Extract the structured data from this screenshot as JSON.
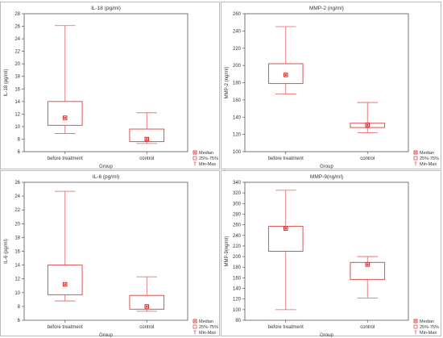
{
  "legend": {
    "median_label": "Median",
    "iqr_label": "25%-75%",
    "range_label": "Min-Max"
  },
  "colors": {
    "box_stroke": "#d9534f",
    "whisker_stroke": "#e06060",
    "median_fill": "#cc2222",
    "axis": "#555555",
    "text": "#333333"
  },
  "chart_data": [
    {
      "type": "box",
      "title": "IL-18 (pg/ml)",
      "xlabel": "Group",
      "ylabel": "IL-18 (pg/ml)",
      "categories": [
        "before treatment",
        "control"
      ],
      "ylim": [
        6,
        28
      ],
      "yticks": [
        6,
        8,
        10,
        12,
        14,
        16,
        18,
        20,
        22,
        24,
        26,
        28
      ],
      "boxes": [
        {
          "min": 8.9,
          "q1": 10.2,
          "median": 11.4,
          "q3": 14.0,
          "max": 26.1
        },
        {
          "min": 7.3,
          "q1": 7.6,
          "median": 8.0,
          "q3": 9.6,
          "max": 12.2
        }
      ]
    },
    {
      "type": "box",
      "title": "MMP-2  (ng/ml)",
      "xlabel": "Group",
      "ylabel": "MMP-2  (ng/ml)",
      "categories": [
        "before treatment",
        "control"
      ],
      "ylim": [
        100,
        260
      ],
      "yticks": [
        100,
        120,
        140,
        160,
        180,
        200,
        220,
        240,
        260
      ],
      "boxes": [
        {
          "min": 167,
          "q1": 179,
          "median": 189,
          "q3": 202,
          "max": 245
        },
        {
          "min": 122,
          "q1": 128,
          "median": 131,
          "q3": 133,
          "max": 157
        }
      ]
    },
    {
      "type": "box",
      "title": "IL-6 (pg/ml)",
      "xlabel": "Group",
      "ylabel": "IL-6 (pg/ml)",
      "categories": [
        "before treatment",
        "control"
      ],
      "ylim": [
        6,
        26
      ],
      "yticks": [
        6,
        8,
        10,
        12,
        14,
        16,
        18,
        20,
        22,
        24,
        26
      ],
      "boxes": [
        {
          "min": 8.8,
          "q1": 9.7,
          "median": 11.2,
          "q3": 14.0,
          "max": 24.7
        },
        {
          "min": 7.3,
          "q1": 7.6,
          "median": 8.0,
          "q3": 9.6,
          "max": 12.3
        }
      ]
    },
    {
      "type": "box",
      "title": "MMP-9(ng/ml)",
      "xlabel": "Group",
      "ylabel": "MMP-9(ng/ml)",
      "categories": [
        "before treatment",
        "control"
      ],
      "ylim": [
        80,
        340
      ],
      "yticks": [
        80,
        100,
        120,
        140,
        160,
        180,
        200,
        220,
        240,
        260,
        280,
        300,
        320,
        340
      ],
      "boxes": [
        {
          "min": 100,
          "q1": 210,
          "median": 253,
          "q3": 257,
          "max": 325
        },
        {
          "min": 122,
          "q1": 157,
          "median": 185,
          "q3": 189,
          "max": 200
        }
      ]
    }
  ]
}
